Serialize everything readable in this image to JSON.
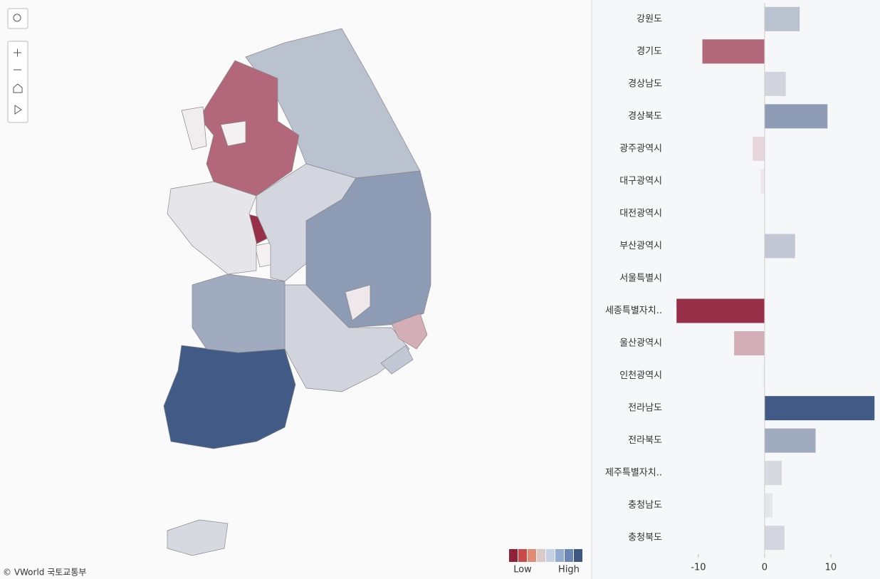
{
  "chart_data": {
    "type": "bar",
    "orientation": "horizontal",
    "categories": [
      "강원도",
      "경기도",
      "경상남도",
      "경상북도",
      "광주광역시",
      "대구광역시",
      "대전광역시",
      "부산광역시",
      "서울특별시",
      "세종특별자치..",
      "울산광역시",
      "인천광역시",
      "전라남도",
      "전라북도",
      "제주특별자치..",
      "충청남도",
      "충청북도"
    ],
    "values": [
      5.3,
      -9.4,
      3.2,
      9.5,
      -1.8,
      -0.6,
      0,
      4.6,
      0,
      -13.3,
      -4.6,
      -0.3,
      16.6,
      7.7,
      2.6,
      1.2,
      3.0
    ],
    "xlim": [
      -14.4,
      17
    ],
    "xticks": [
      -10,
      0,
      10
    ],
    "color_low": "#8f1f3a",
    "color_mid": "#f3f1f2",
    "color_high": "#3d5783",
    "legend": {
      "colors": [
        "#8f2139",
        "#c94a4a",
        "#e28a72",
        "#d9cbc8",
        "#c4d0e3",
        "#94acd0",
        "#6b87b7",
        "#3e5782"
      ],
      "low_label": "Low",
      "high_label": "High"
    },
    "attribution": "© VWorld 국토교통부"
  }
}
